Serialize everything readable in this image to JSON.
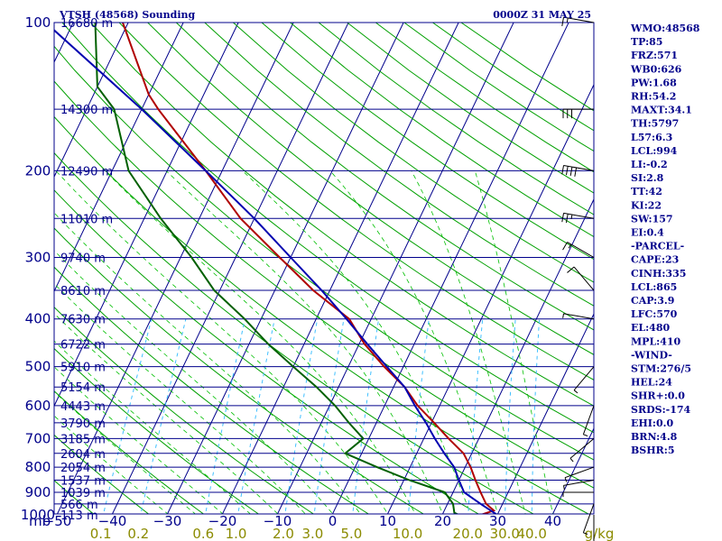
{
  "title_left": "VTSH (48568) Sounding",
  "title_right": "0000Z 31 MAY 25",
  "colors": {
    "frame": "#00008b",
    "isobar": "#00008b",
    "isotherm": "#00008b",
    "dry_adiabat": "#00a000",
    "moist_adiabat": "#00c000",
    "mixing_ratio": "#40c0ff",
    "temperature": "#b00000",
    "dewpoint": "#006000",
    "parcel": "#0000b0",
    "wind": "#000000",
    "text": "#00008b",
    "mixing_label": "#8b8b00"
  },
  "chart_data": {
    "type": "line",
    "title": "VTSH (48568) Sounding",
    "subtitle": "0000Z 31 MAY 25",
    "xlabel": "",
    "ylabel": "mb",
    "xlim": [
      -50,
      50
    ],
    "ylim": [
      1050,
      100
    ],
    "x_tick_labels": [
      "−50",
      "−40",
      "−30",
      "−20",
      "−10",
      "0",
      "10",
      "20",
      "30",
      "40"
    ],
    "x_ticks": [
      -50,
      -40,
      -30,
      -20,
      -10,
      0,
      10,
      20,
      30,
      40
    ],
    "y_tick_labels": [
      "100",
      "200",
      "300",
      "400",
      "500",
      "600",
      "700",
      "800",
      "900",
      "1000"
    ],
    "y_ticks": [
      100,
      200,
      300,
      400,
      500,
      600,
      700,
      800,
      900,
      1000
    ],
    "height_levels": [
      {
        "p": 100,
        "label": "16680 m"
      },
      {
        "p": 150,
        "label": "14300 m"
      },
      {
        "p": 200,
        "label": "12490 m"
      },
      {
        "p": 250,
        "label": "11010 m"
      },
      {
        "p": 300,
        "label": "9740 m"
      },
      {
        "p": 350,
        "label": "8610 m"
      },
      {
        "p": 400,
        "label": "7630 m"
      },
      {
        "p": 450,
        "label": "6722 m"
      },
      {
        "p": 500,
        "label": "5910 m"
      },
      {
        "p": 550,
        "label": "5154 m"
      },
      {
        "p": 600,
        "label": "4443 m"
      },
      {
        "p": 650,
        "label": "3790 m"
      },
      {
        "p": 700,
        "label": "3185 m"
      },
      {
        "p": 750,
        "label": "2604 m"
      },
      {
        "p": 800,
        "label": "2054 m"
      },
      {
        "p": 850,
        "label": "1537 m"
      },
      {
        "p": 900,
        "label": "1039 m"
      },
      {
        "p": 950,
        "label": "566 m"
      },
      {
        "p": 1000,
        "label": "113 m"
      }
    ],
    "mixing_ratio_labels": [
      "0.1",
      "0.2",
      "0.6",
      "1.0",
      "2.0",
      "3.0",
      "5.0",
      "10.0",
      "20.0",
      "30.0",
      "40.0"
    ],
    "mixing_ratio_values": [
      0.1,
      0.2,
      0.6,
      1.0,
      2.0,
      3.0,
      5.0,
      10.0,
      20.0,
      30.0,
      40.0
    ],
    "mixing_unit": "g/kg",
    "series": [
      {
        "key": "temperature",
        "points": [
          {
            "p": 1000,
            "t": 27
          },
          {
            "p": 980,
            "t": 29
          },
          {
            "p": 950,
            "t": 27
          },
          {
            "p": 900,
            "t": 25
          },
          {
            "p": 850,
            "t": 23
          },
          {
            "p": 800,
            "t": 21
          },
          {
            "p": 750,
            "t": 18.5
          },
          {
            "p": 700,
            "t": 14.5
          },
          {
            "p": 650,
            "t": 10.5
          },
          {
            "p": 600,
            "t": 6
          },
          {
            "p": 550,
            "t": 2
          },
          {
            "p": 500,
            "t": -3.5
          },
          {
            "p": 450,
            "t": -9
          },
          {
            "p": 400,
            "t": -14
          },
          {
            "p": 350,
            "t": -23
          },
          {
            "p": 300,
            "t": -32
          },
          {
            "p": 250,
            "t": -42.5
          },
          {
            "p": 200,
            "t": -53
          },
          {
            "p": 150,
            "t": -67
          },
          {
            "p": 140,
            "t": -70
          },
          {
            "p": 100,
            "t": -81
          }
        ]
      },
      {
        "key": "dewpoint",
        "points": [
          {
            "p": 1000,
            "t": 23
          },
          {
            "p": 990,
            "t": 22
          },
          {
            "p": 950,
            "t": 21
          },
          {
            "p": 900,
            "t": 18.5
          },
          {
            "p": 850,
            "t": 11
          },
          {
            "p": 800,
            "t": 4
          },
          {
            "p": 750,
            "t": -3
          },
          {
            "p": 700,
            "t": -1
          },
          {
            "p": 650,
            "t": -5
          },
          {
            "p": 600,
            "t": -9
          },
          {
            "p": 550,
            "t": -14
          },
          {
            "p": 500,
            "t": -20
          },
          {
            "p": 450,
            "t": -26.5
          },
          {
            "p": 400,
            "t": -33
          },
          {
            "p": 350,
            "t": -41
          },
          {
            "p": 300,
            "t": -48
          },
          {
            "p": 250,
            "t": -57
          },
          {
            "p": 200,
            "t": -67
          },
          {
            "p": 150,
            "t": -75
          },
          {
            "p": 135,
            "t": -80
          },
          {
            "p": 100,
            "t": -86
          }
        ]
      },
      {
        "key": "parcel",
        "points": [
          {
            "p": 1000,
            "t": 30
          },
          {
            "p": 950,
            "t": 26
          },
          {
            "p": 900,
            "t": 22
          },
          {
            "p": 850,
            "t": 20
          },
          {
            "p": 800,
            "t": 18
          },
          {
            "p": 750,
            "t": 15
          },
          {
            "p": 700,
            "t": 12
          },
          {
            "p": 650,
            "t": 9
          },
          {
            "p": 600,
            "t": 5.5
          },
          {
            "p": 550,
            "t": 2
          },
          {
            "p": 500,
            "t": -3
          },
          {
            "p": 450,
            "t": -8.5
          },
          {
            "p": 400,
            "t": -14.5
          },
          {
            "p": 350,
            "t": -21.5
          },
          {
            "p": 300,
            "t": -30
          },
          {
            "p": 250,
            "t": -40
          },
          {
            "p": 200,
            "t": -53
          },
          {
            "p": 150,
            "t": -70
          },
          {
            "p": 100,
            "t": -95
          }
        ]
      }
    ],
    "wind_barbs_right": [
      {
        "p": 100,
        "dir": 280,
        "kt": 15
      },
      {
        "p": 150,
        "dir": 270,
        "kt": 30
      },
      {
        "p": 200,
        "dir": 280,
        "kt": 40
      },
      {
        "p": 250,
        "dir": 280,
        "kt": 25
      },
      {
        "p": 300,
        "dir": 300,
        "kt": 15
      },
      {
        "p": 350,
        "dir": 320,
        "kt": 10
      },
      {
        "p": 400,
        "dir": 280,
        "kt": 5
      },
      {
        "p": 500,
        "dir": 220,
        "kt": 5
      },
      {
        "p": 600,
        "dir": 200,
        "kt": 5
      },
      {
        "p": 700,
        "dir": 230,
        "kt": 5
      },
      {
        "p": 800,
        "dir": 250,
        "kt": 5
      },
      {
        "p": 850,
        "dir": 260,
        "kt": 5
      },
      {
        "p": 900,
        "dir": 270,
        "kt": 5
      },
      {
        "p": 950,
        "dir": 200,
        "kt": 5
      },
      {
        "p": 1000,
        "dir": 180,
        "kt": 5
      }
    ]
  },
  "indices": [
    "WMO:48568",
    "TP:85",
    "FRZ:571",
    "WB0:626",
    "PW:1.68",
    "RH:54.2",
    "MAXT:34.1",
    "TH:5797",
    "L57:6.3",
    "LCL:994",
    "LI:-0.2",
    "SI:2.8",
    "TT:42",
    "KI:22",
    "SW:157",
    "EI:0.4",
    "-PARCEL-",
    "CAPE:23",
    "CINH:335",
    "LCL:865",
    "CAP:3.9",
    "LFC:570",
    "EL:480",
    "MPL:410",
    "-WIND-",
    "STM:276/5",
    "HEL:24",
    "SHR+:0.0",
    "SRDS:-174",
    "EHI:0.0",
    "BRN:4.8",
    "BSHR:5"
  ]
}
